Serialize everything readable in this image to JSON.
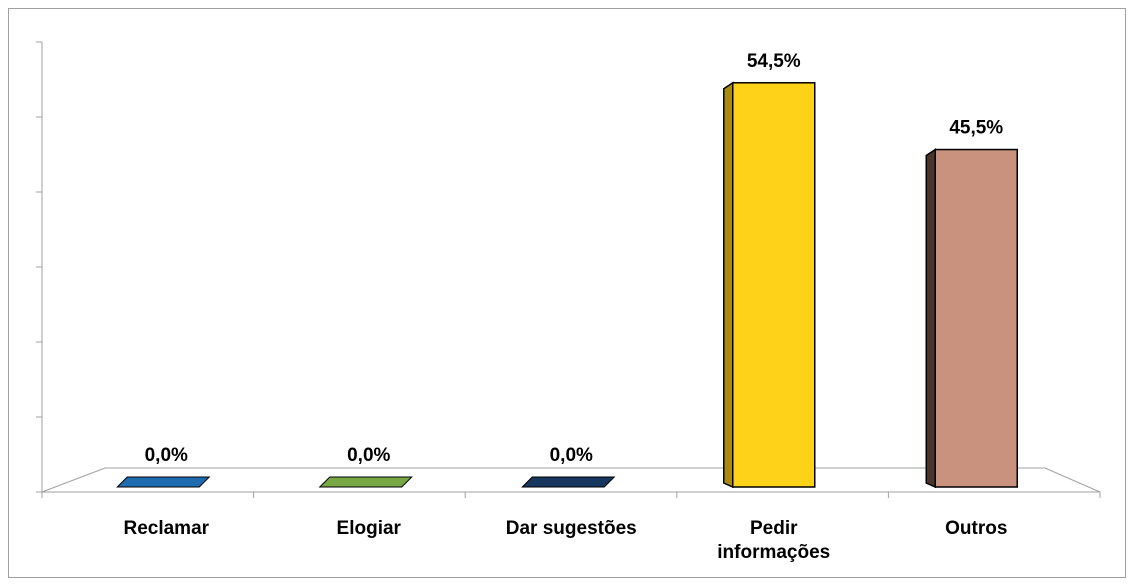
{
  "chart_data": {
    "type": "bar",
    "categories": [
      "Reclamar",
      "Elogiar",
      "Dar sugestões",
      "Pedir informações",
      "Outros"
    ],
    "values": [
      0,
      0,
      0,
      54.5,
      45.5
    ],
    "value_labels": [
      "0,0%",
      "0,0%",
      "0,0%",
      "54,5%",
      "45,5%"
    ],
    "colors": [
      "#1f6bb0",
      "#77a843",
      "#17375e",
      "#ffd21a",
      "#c9927f"
    ],
    "side_colors": [
      "#154a7a",
      "#4f7a2a",
      "#0c1f38",
      "#a88a10",
      "#4a342c"
    ],
    "ylim": [
      0,
      60
    ],
    "yticks": [
      0,
      10,
      20,
      30,
      40,
      50,
      60
    ]
  }
}
